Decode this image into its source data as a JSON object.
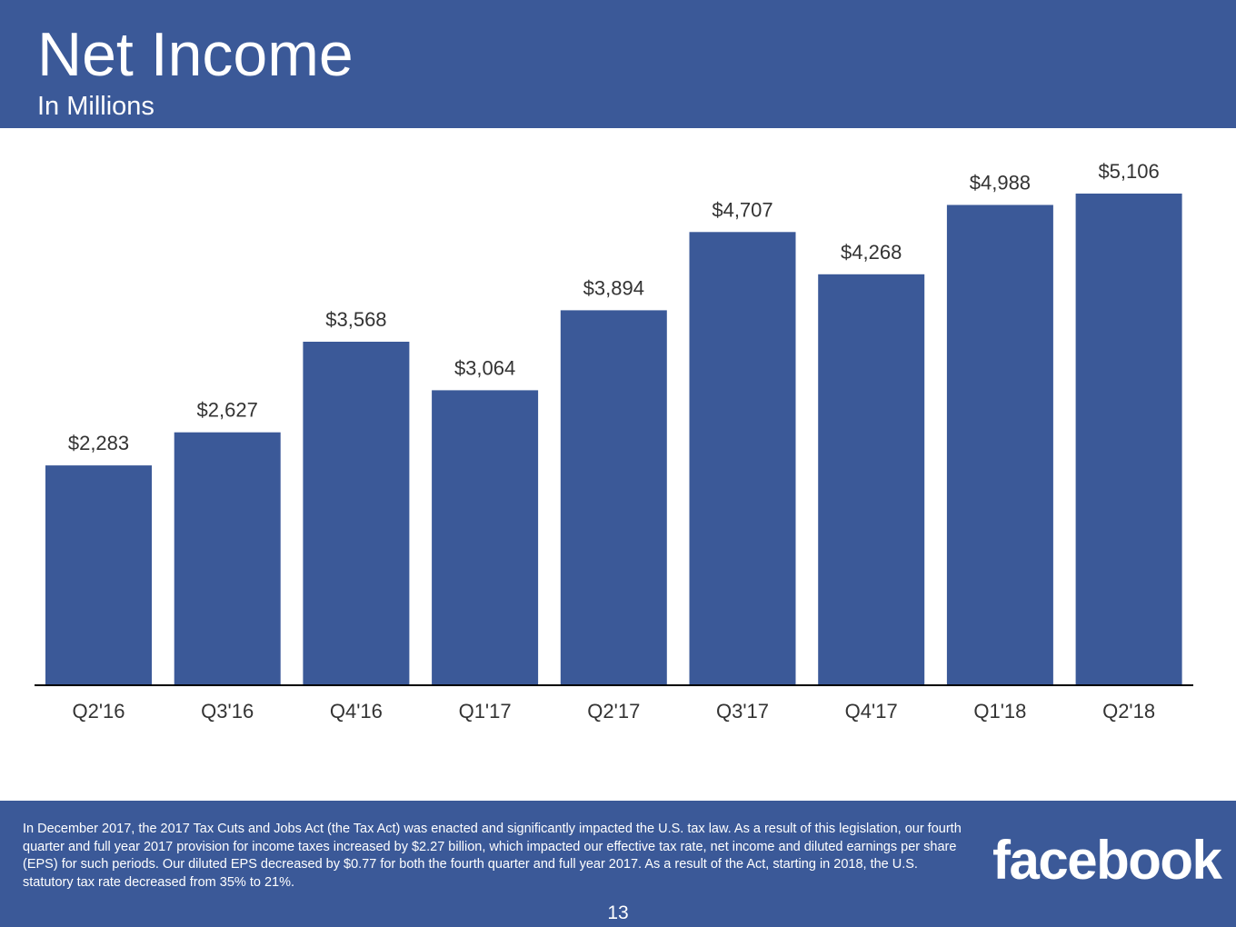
{
  "slide": {
    "title": "Net Income",
    "subtitle": "In Millions",
    "footnote": "In December 2017, the 2017 Tax Cuts and Jobs Act (the Tax Act) was enacted and significantly impacted the U.S. tax law. As a result of this legislation, our fourth quarter and full year 2017 provision for income taxes increased by $2.27 billion, which impacted our effective tax rate, net income and diluted earnings per share (EPS) for such periods. Our diluted EPS decreased by $0.77 for both the fourth quarter and full year 2017. As a result of the Act, starting in 2018, the U.S. statutory tax rate decreased from 35% to 21%.",
    "logo_text": "facebook",
    "page_number": "13"
  },
  "colors": {
    "brand": "#3b5998",
    "bar": "#3b5998",
    "axis": "#000000",
    "label_text": "#333333"
  },
  "chart_data": {
    "type": "bar",
    "title": "Net Income",
    "subtitle": "In Millions",
    "xlabel": "",
    "ylabel": "",
    "categories": [
      "Q2'16",
      "Q3'16",
      "Q4'16",
      "Q1'17",
      "Q2'17",
      "Q3'17",
      "Q4'17",
      "Q1'18",
      "Q2'18"
    ],
    "values": [
      2283,
      2627,
      3568,
      3064,
      3894,
      4707,
      4268,
      4988,
      5106
    ],
    "data_labels": [
      "$2,283",
      "$2,627",
      "$3,568",
      "$3,064",
      "$3,894",
      "$4,707",
      "$4,268",
      "$4,988",
      "$5,106"
    ],
    "ylim": [
      0,
      5106
    ],
    "grid": false,
    "legend": "none"
  }
}
